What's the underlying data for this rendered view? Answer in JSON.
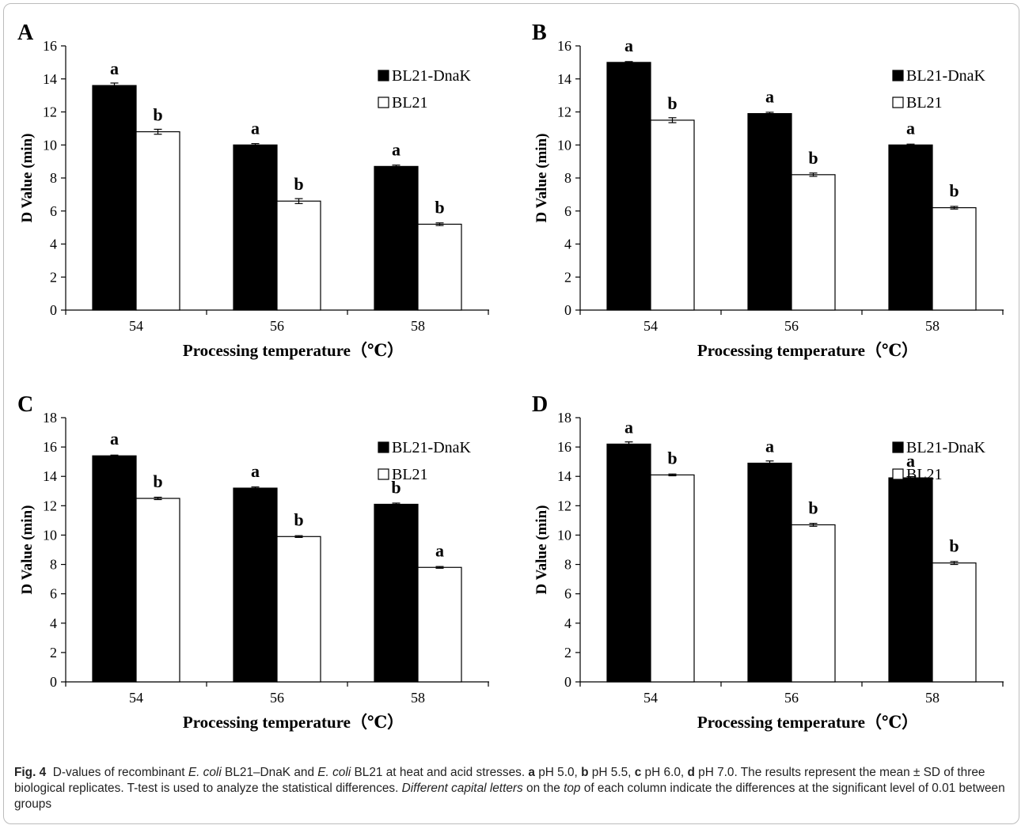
{
  "chart_data": [
    {
      "type": "bar",
      "panel_label": "A",
      "categories": [
        "54",
        "56",
        "58"
      ],
      "xlabel": "Processing temperature（℃）",
      "ylabel": "D Value (min)",
      "ylim": [
        0,
        16
      ],
      "yticks": [
        "0",
        "2",
        "4",
        "6",
        "8",
        "10",
        "12",
        "14",
        "16"
      ],
      "legend_position": "top-right",
      "series": [
        {
          "name": "BL21-DnaK",
          "fill": "#000000",
          "values": [
            13.6,
            10.0,
            8.7
          ],
          "errors": [
            0.15,
            0.08,
            0.08
          ],
          "letters": [
            "a",
            "a",
            "a"
          ]
        },
        {
          "name": "BL21",
          "fill": "#ffffff",
          "values": [
            10.8,
            6.6,
            5.2
          ],
          "errors": [
            0.15,
            0.15,
            0.08
          ],
          "letters": [
            "b",
            "b",
            "b"
          ]
        }
      ]
    },
    {
      "type": "bar",
      "panel_label": "B",
      "categories": [
        "54",
        "56",
        "58"
      ],
      "xlabel": "Processing temperature（℃）",
      "ylabel": "D Value (min)",
      "ylim": [
        0,
        16
      ],
      "yticks": [
        "0",
        "2",
        "4",
        "6",
        "8",
        "10",
        "12",
        "14",
        "16"
      ],
      "legend_position": "top-right",
      "series": [
        {
          "name": "BL21-DnaK",
          "fill": "#000000",
          "values": [
            15.0,
            11.9,
            10.0
          ],
          "errors": [
            0.05,
            0.08,
            0.05
          ],
          "letters": [
            "a",
            "a",
            "a"
          ]
        },
        {
          "name": "BL21",
          "fill": "#ffffff",
          "values": [
            11.5,
            8.2,
            6.2
          ],
          "errors": [
            0.15,
            0.1,
            0.08
          ],
          "letters": [
            "b",
            "b",
            "b"
          ]
        }
      ]
    },
    {
      "type": "bar",
      "panel_label": "C",
      "categories": [
        "54",
        "56",
        "58"
      ],
      "xlabel": "Processing temperature（℃）",
      "ylabel": "D Value (min)",
      "ylim": [
        0,
        18
      ],
      "yticks": [
        "0",
        "2",
        "4",
        "6",
        "8",
        "10",
        "12",
        "14",
        "16",
        "18"
      ],
      "legend_position": "top-right",
      "series": [
        {
          "name": "BL21-DnaK",
          "fill": "#000000",
          "values": [
            15.4,
            13.2,
            12.1
          ],
          "errors": [
            0.05,
            0.08,
            0.08
          ],
          "letters": [
            "a",
            "a",
            "b"
          ]
        },
        {
          "name": "BL21",
          "fill": "#ffffff",
          "values": [
            12.5,
            9.9,
            7.8
          ],
          "errors": [
            0.08,
            0.06,
            0.06
          ],
          "letters": [
            "b",
            "b",
            "a"
          ]
        }
      ]
    },
    {
      "type": "bar",
      "panel_label": "D",
      "categories": [
        "54",
        "56",
        "58"
      ],
      "xlabel": "Processing temperature（℃）",
      "ylabel": "D Value (min)",
      "ylim": [
        0,
        18
      ],
      "yticks": [
        "0",
        "2",
        "4",
        "6",
        "8",
        "10",
        "12",
        "14",
        "16",
        "18"
      ],
      "legend_position": "top-right",
      "series": [
        {
          "name": "BL21-DnaK",
          "fill": "#000000",
          "values": [
            16.2,
            14.9,
            13.9
          ],
          "errors": [
            0.15,
            0.15,
            0.08
          ],
          "letters": [
            "a",
            "a",
            "a"
          ]
        },
        {
          "name": "BL21",
          "fill": "#ffffff",
          "values": [
            14.1,
            10.7,
            8.1
          ],
          "errors": [
            0.06,
            0.1,
            0.1
          ],
          "letters": [
            "b",
            "b",
            "b"
          ]
        }
      ]
    }
  ],
  "caption": {
    "fig_label": "Fig. 4",
    "t1": "D-values of recombinant ",
    "i1": "E. coli",
    "t2": " BL21–DnaK and ",
    "i2": "E. coli",
    "t3": " BL21 at heat and acid stresses. ",
    "b1": "a",
    "t4": " pH 5.0, ",
    "b2": "b",
    "t5": " pH 5.5, ",
    "b3": "c",
    "t6": " pH 6.0, ",
    "b4": "d",
    "t7": " pH 7.0. The results represent the mean ± SD of three biological replicates. T-test is used to analyze the statistical differences. ",
    "i3": "Different capital letters",
    "t8": " on the ",
    "i4": "top",
    "t9": " of each column indicate the differences at the significant level of 0.01 between groups"
  }
}
